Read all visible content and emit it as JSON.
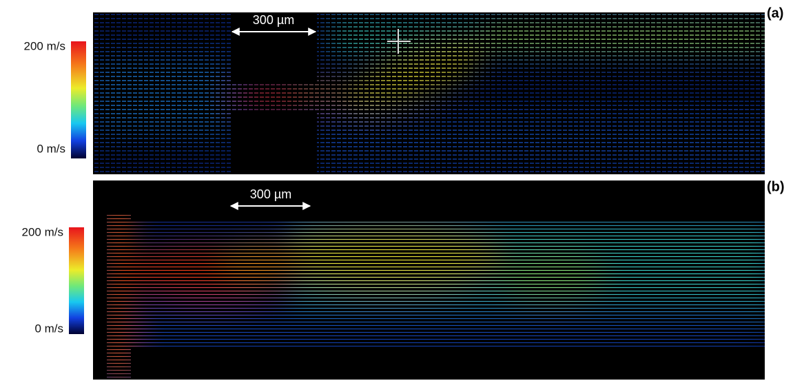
{
  "panels": [
    {
      "label": "(a)",
      "scale_bar": "300 µm",
      "colorbar": {
        "max_label": "200 m/s",
        "min_label": "0 m/s"
      }
    },
    {
      "label": "(b)",
      "scale_bar": "300 µm",
      "colorbar": {
        "max_label": "200 m/s",
        "min_label": "0 m/s"
      }
    }
  ]
}
